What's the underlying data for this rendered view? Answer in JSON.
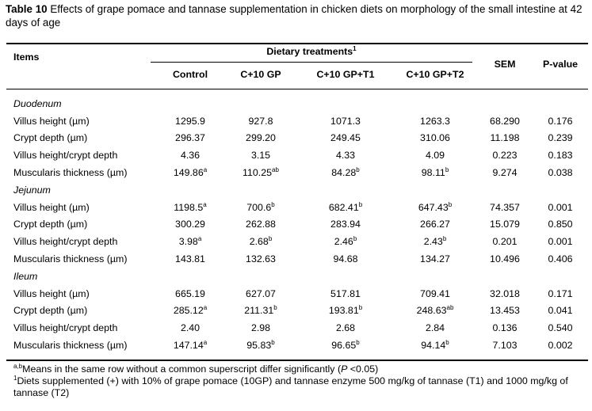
{
  "caption": {
    "label": "Table 10",
    "text": " Effects of grape pomace and tannase supplementation in chicken diets on morphology of the small intestine at 42 days of age"
  },
  "header": {
    "items": "Items",
    "dietary": "Dietary treatments",
    "dietary_sup": "1",
    "treatments": [
      "Control",
      "C+10 GP",
      "C+10 GP+T1",
      "C+10 GP+T2"
    ],
    "sem": "SEM",
    "pvalue": "P-value"
  },
  "sections": [
    {
      "name": "Duodenum",
      "rows": [
        {
          "label": "Villus height (µm)",
          "vals": [
            [
              "1295.9",
              ""
            ],
            [
              "927.8",
              ""
            ],
            [
              "1071.3",
              ""
            ],
            [
              "1263.3",
              ""
            ]
          ],
          "sem": "68.290",
          "p": "0.176"
        },
        {
          "label": "Crypt depth (µm)",
          "vals": [
            [
              "296.37",
              ""
            ],
            [
              "299.20",
              ""
            ],
            [
              "249.45",
              ""
            ],
            [
              "310.06",
              ""
            ]
          ],
          "sem": "11.198",
          "p": "0.239"
        },
        {
          "label": "Villus height/crypt depth",
          "vals": [
            [
              "4.36",
              ""
            ],
            [
              "3.15",
              ""
            ],
            [
              "4.33",
              ""
            ],
            [
              "4.09",
              ""
            ]
          ],
          "sem": "0.223",
          "p": "0.183"
        },
        {
          "label": "Muscularis thickness (µm)",
          "vals": [
            [
              "149.86",
              "a"
            ],
            [
              "110.25",
              "ab"
            ],
            [
              "84.28",
              "b"
            ],
            [
              "98.11",
              "b"
            ]
          ],
          "sem": "9.274",
          "p": "0.038"
        }
      ]
    },
    {
      "name": "Jejunum",
      "rows": [
        {
          "label": "Villus height (µm)",
          "vals": [
            [
              "1198.5",
              "a"
            ],
            [
              "700.6",
              "b"
            ],
            [
              "682.41",
              "b"
            ],
            [
              "647.43",
              "b"
            ]
          ],
          "sem": "74.357",
          "p": "0.001"
        },
        {
          "label": "Crypt depth (µm)",
          "vals": [
            [
              "300.29",
              ""
            ],
            [
              "262.88",
              ""
            ],
            [
              "283.94",
              ""
            ],
            [
              "266.27",
              ""
            ]
          ],
          "sem": "15.079",
          "p": "0.850"
        },
        {
          "label": "Villus height/crypt depth",
          "vals": [
            [
              "3.98",
              "a"
            ],
            [
              "2.68",
              "b"
            ],
            [
              "2.46",
              "b"
            ],
            [
              "2.43",
              "b"
            ]
          ],
          "sem": "0.201",
          "p": "0.001"
        },
        {
          "label": "Muscularis thickness (µm)",
          "vals": [
            [
              "143.81",
              ""
            ],
            [
              "132.63",
              ""
            ],
            [
              "94.68",
              ""
            ],
            [
              "134.27",
              ""
            ]
          ],
          "sem": "10.496",
          "p": "0.406"
        }
      ]
    },
    {
      "name": "Ileum",
      "rows": [
        {
          "label": "Villus height (µm)",
          "vals": [
            [
              "665.19",
              ""
            ],
            [
              "627.07",
              ""
            ],
            [
              "517.81",
              ""
            ],
            [
              "709.41",
              ""
            ]
          ],
          "sem": "32.018",
          "p": "0.171"
        },
        {
          "label": "Crypt depth (µm)",
          "vals": [
            [
              "285.12",
              "a"
            ],
            [
              "211.31",
              "b"
            ],
            [
              "193.81",
              "b"
            ],
            [
              "248.63",
              "ab"
            ]
          ],
          "sem": "13.453",
          "p": "0.041"
        },
        {
          "label": "Villus height/crypt depth",
          "vals": [
            [
              "2.40",
              ""
            ],
            [
              "2.98",
              ""
            ],
            [
              "2.68",
              ""
            ],
            [
              "2.84",
              ""
            ]
          ],
          "sem": "0.136",
          "p": "0.540"
        },
        {
          "label": "Muscularis thickness (µm)",
          "vals": [
            [
              "147.14",
              "a"
            ],
            [
              "95.83",
              "b"
            ],
            [
              "96.65",
              "b"
            ],
            [
              "94.14",
              "b"
            ]
          ],
          "sem": "7.103",
          "p": "0.002"
        }
      ]
    }
  ],
  "footnotes": {
    "note1_sup": "a,b",
    "note1_text": "Means in the same row without a common superscript differ significantly (",
    "note1_p": "P",
    "note1_tail": " <0.05)",
    "note2_sup": "1",
    "note2_text": "Diets supplemented (+) with 10% of grape pomace (10GP) and tannase enzyme 500 mg/kg of tannase (T1) and 1000 mg/kg of tannase (T2)"
  }
}
